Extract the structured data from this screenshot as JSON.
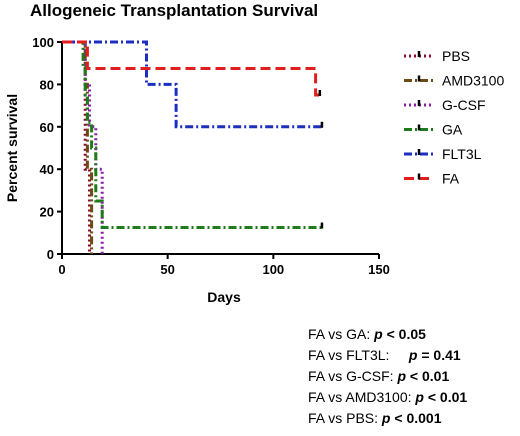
{
  "chart_data": {
    "type": "line",
    "title": "Allogeneic Transplantation Survival",
    "xlabel": "Days",
    "ylabel": "Percent survival",
    "xlim": [
      0,
      150
    ],
    "ylim": [
      0,
      100
    ],
    "xticks": [
      "0",
      "50",
      "100",
      "150"
    ],
    "yticks": [
      "0",
      "20",
      "40",
      "60",
      "80",
      "100"
    ],
    "grid": false,
    "legend_position": "right",
    "series": [
      {
        "name": "PBS",
        "color": "#8b0a2a",
        "dash": "2,3",
        "x": [
          0,
          11,
          11,
          13,
          13
        ],
        "y": [
          100,
          100,
          40,
          40,
          0
        ]
      },
      {
        "name": "AMD3100",
        "color": "#6b4a14",
        "dash": "8,3,2,3",
        "x": [
          0,
          11,
          11,
          12,
          12,
          14,
          14
        ],
        "y": [
          100,
          100,
          80,
          80,
          40,
          40,
          0
        ]
      },
      {
        "name": "G-CSF",
        "color": "#8a1ea8",
        "dash": "2,3",
        "x": [
          0,
          11,
          11,
          13,
          13,
          16,
          16,
          19,
          19
        ],
        "y": [
          100,
          100,
          80,
          80,
          60,
          60,
          40,
          40,
          0
        ]
      },
      {
        "name": "GA",
        "color": "#1f7a1a",
        "dash": "8,3,2,3",
        "x": [
          0,
          10,
          10,
          11,
          11,
          12,
          12,
          14,
          14,
          16,
          16,
          19,
          19,
          123
        ],
        "y": [
          100,
          100,
          88,
          88,
          75,
          75,
          62,
          62,
          50,
          50,
          25,
          25,
          12.5,
          12.5
        ]
      },
      {
        "name": "FLT3L",
        "color": "#1c2ebf",
        "dash": "8,3,2,3",
        "x": [
          0,
          40,
          40,
          54,
          54,
          123
        ],
        "y": [
          100,
          100,
          80,
          80,
          60,
          60
        ]
      },
      {
        "name": "FA",
        "color": "#e11d1d",
        "dash": "10,5",
        "x": [
          0,
          12,
          12,
          120,
          120,
          123
        ],
        "y": [
          100,
          100,
          87.5,
          87.5,
          75,
          75
        ]
      }
    ],
    "censor_marks": [
      {
        "series": "FA",
        "x": 122,
        "y": 75
      },
      {
        "series": "FLT3L",
        "x": 123,
        "y": 60
      },
      {
        "series": "GA",
        "x": 123,
        "y": 12.5
      }
    ]
  },
  "stats": [
    {
      "prefix": "FA vs GA:",
      "p": "p",
      "value": "< 0.05"
    },
    {
      "prefix": "FA vs FLT3L:    ",
      "p": "p",
      "value": "= 0.41"
    },
    {
      "prefix": "FA vs G-CSF:",
      "p": "p",
      "value": "< 0.01"
    },
    {
      "prefix": "FA vs AMD3100:",
      "p": "p",
      "value": "< 0.01"
    },
    {
      "prefix": "FA vs PBS:",
      "p": "p",
      "value": "< 0.001"
    }
  ]
}
